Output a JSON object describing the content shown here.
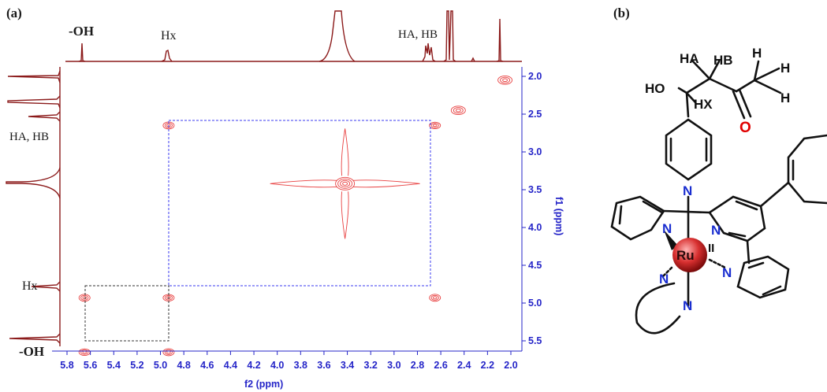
{
  "panel_a": {
    "label": "(a)",
    "peak_labels": {
      "oh": "-OH",
      "hx": "Hx",
      "hab": "HA, HB"
    },
    "side_labels": {
      "hab": "HA, HB",
      "hx": "Hx",
      "oh": "-OH"
    },
    "x_axis_title": "f2 (ppm)",
    "y_axis_title": "f1 (ppm)"
  },
  "panel_b": {
    "label": "(b)",
    "atoms": {
      "ha": "HA",
      "hb": "HB",
      "hx": "HX",
      "ho": "HO",
      "o": "O",
      "h1": "H",
      "h2": "H",
      "h3": "H",
      "ru": "Ru",
      "ox": "II",
      "n_pyr": "N",
      "n_left": "N",
      "n_mid": "N",
      "n_right": "N",
      "n_bl": "N",
      "n_bot": "N"
    }
  },
  "colors": {
    "spectrum": "#8b1a1a",
    "contour": "#e84040",
    "axis": "#2525c8",
    "box_blue": "#3a3af0",
    "box_dark": "#333333",
    "oxygen": "#e00000",
    "nitrogen": "#1a2ed0"
  },
  "chart_data": {
    "type": "heatmap",
    "subtype": "2D COSY NMR contour plot",
    "xlabel": "f2 (ppm)",
    "ylabel": "f1 (ppm)",
    "xlim": [
      5.85,
      1.9
    ],
    "ylim": [
      1.9,
      5.85
    ],
    "x_ticks": [
      5.8,
      5.6,
      5.4,
      5.2,
      5.0,
      4.8,
      4.6,
      4.4,
      4.2,
      4.0,
      3.8,
      3.6,
      3.4,
      3.2,
      3.0,
      2.8,
      2.6,
      2.4,
      2.2,
      2.0
    ],
    "y_ticks": [
      2.0,
      2.5,
      3.0,
      3.5,
      4.0,
      4.5,
      5.0,
      5.5
    ],
    "peaks_1d": [
      {
        "label": "-OH",
        "ppm": 5.65
      },
      {
        "label": "Hx",
        "ppm": 4.93
      },
      {
        "label": "HA, HB",
        "ppm": 2.65
      }
    ],
    "diagonal_peaks": [
      {
        "x": 5.65,
        "y": 5.65
      },
      {
        "x": 4.93,
        "y": 4.93
      },
      {
        "x": 3.42,
        "y": 3.42
      },
      {
        "x": 2.65,
        "y": 2.65
      },
      {
        "x": 2.45,
        "y": 2.45
      },
      {
        "x": 2.05,
        "y": 2.05
      }
    ],
    "cross_peaks": [
      {
        "x": 4.93,
        "y": 2.65
      },
      {
        "x": 2.65,
        "y": 4.93
      },
      {
        "x": 4.93,
        "y": 5.65
      },
      {
        "x": 5.65,
        "y": 4.93
      }
    ],
    "correlation_boxes": [
      {
        "color": "blue",
        "x": [
          4.93,
          2.65
        ],
        "y": [
          2.65,
          4.93
        ]
      },
      {
        "color": "black",
        "x": [
          5.65,
          4.93
        ],
        "y": [
          4.93,
          5.65
        ]
      }
    ]
  }
}
